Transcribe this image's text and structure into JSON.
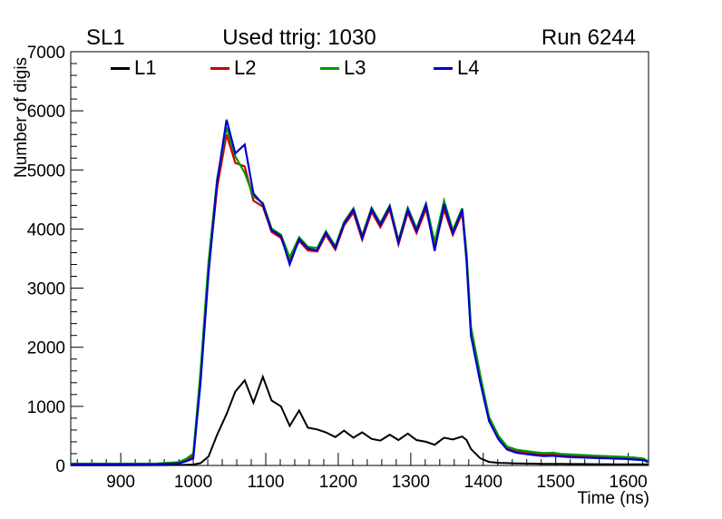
{
  "header": {
    "left_title": "SL1",
    "center_title": "Used ttrig: 1030",
    "right_title": "Run 6244"
  },
  "legend": {
    "items": [
      {
        "label": "L1",
        "color": "#000000"
      },
      {
        "label": "L2",
        "color": "#cc0000"
      },
      {
        "label": "L3",
        "color": "#009900"
      },
      {
        "label": "L4",
        "color": "#0000cc"
      }
    ]
  },
  "axes": {
    "xlabel": "Time (ns)",
    "ylabel": "Number of digis"
  },
  "colors": {
    "frame": "#000000",
    "background": "#ffffff",
    "tick_text": "#000000"
  },
  "chart_data": {
    "type": "line",
    "title": "Used ttrig: 1030",
    "xlabel": "Time (ns)",
    "ylabel": "Number of digis",
    "xlim": [
      831,
      1628
    ],
    "ylim": [
      0,
      7000
    ],
    "x_major_ticks": [
      900,
      1000,
      1100,
      1200,
      1300,
      1400,
      1500,
      1600
    ],
    "x_minor_step": 20,
    "y_major_ticks": [
      0,
      1000,
      2000,
      3000,
      4000,
      5000,
      6000,
      7000
    ],
    "y_minor_step": 200,
    "grid": false,
    "legend_position": "top-inside-row",
    "x": [
      831,
      900,
      950,
      980,
      990,
      1000,
      1010,
      1021,
      1033,
      1046,
      1058,
      1071,
      1083,
      1096,
      1108,
      1121,
      1133,
      1146,
      1158,
      1171,
      1183,
      1196,
      1208,
      1221,
      1233,
      1246,
      1258,
      1271,
      1283,
      1296,
      1308,
      1321,
      1333,
      1346,
      1358,
      1371,
      1377,
      1383,
      1396,
      1408,
      1421,
      1433,
      1446,
      1458,
      1471,
      1483,
      1496,
      1508,
      1521,
      1533,
      1546,
      1558,
      1571,
      1583,
      1596,
      1608,
      1621,
      1627
    ],
    "series": [
      {
        "name": "L1",
        "color": "#000000",
        "values": [
          5,
          5,
          6,
          8,
          10,
          15,
          40,
          150,
          520,
          870,
          1250,
          1440,
          1060,
          1500,
          1100,
          1000,
          670,
          930,
          640,
          610,
          560,
          480,
          590,
          470,
          560,
          450,
          420,
          520,
          430,
          540,
          430,
          400,
          350,
          470,
          440,
          490,
          430,
          280,
          120,
          60,
          45,
          40,
          35,
          32,
          30,
          28,
          27,
          26,
          25,
          24,
          23,
          22,
          21,
          20,
          20,
          19,
          18,
          18
        ]
      },
      {
        "name": "L2",
        "color": "#cc0000",
        "values": [
          25,
          25,
          28,
          45,
          90,
          160,
          1500,
          3300,
          4700,
          5600,
          5120,
          5060,
          4480,
          4380,
          3950,
          3850,
          3470,
          3800,
          3640,
          3620,
          3900,
          3650,
          4060,
          4280,
          3820,
          4290,
          4030,
          4330,
          3740,
          4280,
          3930,
          4340,
          3700,
          4330,
          3900,
          4270,
          3500,
          2250,
          1450,
          780,
          470,
          300,
          245,
          225,
          205,
          190,
          195,
          175,
          165,
          160,
          155,
          148,
          142,
          138,
          132,
          122,
          105,
          70
        ]
      },
      {
        "name": "L3",
        "color": "#009900",
        "values": [
          30,
          30,
          33,
          55,
          110,
          200,
          1600,
          3450,
          4850,
          5720,
          5230,
          4950,
          4550,
          4440,
          4010,
          3900,
          3520,
          3860,
          3700,
          3680,
          3960,
          3710,
          4120,
          4350,
          3890,
          4360,
          4100,
          4400,
          3810,
          4360,
          4010,
          4430,
          3780,
          4480,
          3980,
          4350,
          3600,
          2350,
          1520,
          820,
          500,
          320,
          265,
          245,
          225,
          210,
          215,
          195,
          185,
          178,
          172,
          165,
          158,
          152,
          145,
          135,
          115,
          75
        ]
      },
      {
        "name": "L4",
        "color": "#0000cc",
        "values": [
          20,
          20,
          22,
          35,
          70,
          120,
          1400,
          3250,
          4800,
          5850,
          5280,
          5430,
          4600,
          4420,
          3980,
          3880,
          3400,
          3830,
          3670,
          3640,
          3940,
          3680,
          4090,
          4330,
          3850,
          4340,
          4070,
          4380,
          3770,
          4330,
          3970,
          4410,
          3630,
          4420,
          3930,
          4330,
          3450,
          2200,
          1400,
          750,
          440,
          270,
          215,
          195,
          175,
          160,
          165,
          150,
          140,
          135,
          130,
          125,
          120,
          115,
          110,
          100,
          90,
          60
        ]
      }
    ]
  }
}
